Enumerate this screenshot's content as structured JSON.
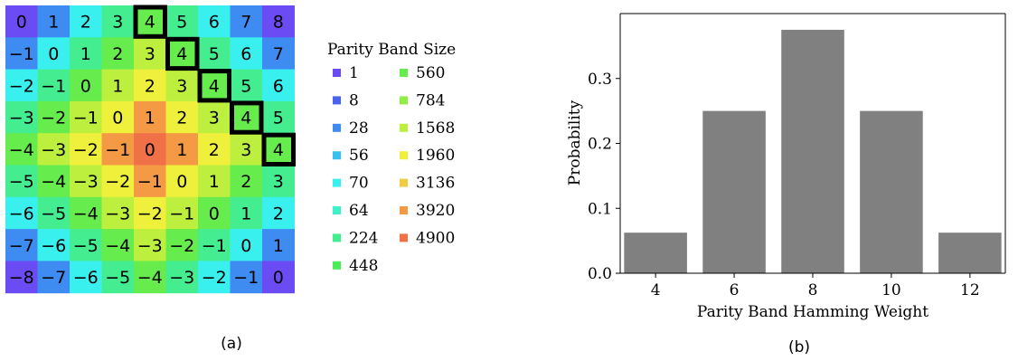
{
  "panel_a": {
    "caption": "(a)",
    "legend_title": "Parity Band Size",
    "legend": [
      {
        "label": "1",
        "color": "#6b4cf4"
      },
      {
        "label": "8",
        "color": "#4a62f0"
      },
      {
        "label": "28",
        "color": "#3e8cf2"
      },
      {
        "label": "56",
        "color": "#38c0ee"
      },
      {
        "label": "70",
        "color": "#3af0ee"
      },
      {
        "label": "64",
        "color": "#40f0c8"
      },
      {
        "label": "224",
        "color": "#44ee90"
      },
      {
        "label": "448",
        "color": "#4ceb5a"
      },
      {
        "label": "560",
        "color": "#66ec4c"
      },
      {
        "label": "784",
        "color": "#90ee44"
      },
      {
        "label": "1568",
        "color": "#bdf03e"
      },
      {
        "label": "1960",
        "color": "#eef03c"
      },
      {
        "label": "3136",
        "color": "#f2cc40"
      },
      {
        "label": "3920",
        "color": "#f49a44"
      },
      {
        "label": "4900",
        "color": "#f07048"
      }
    ]
  },
  "panel_b": {
    "caption": "(b)"
  },
  "chart_data": [
    {
      "type": "heatmap",
      "rows": 9,
      "cols": 9,
      "values": [
        [
          "0",
          "1",
          "2",
          "3",
          "4",
          "5",
          "6",
          "7",
          "8"
        ],
        [
          "−1",
          "0",
          "1",
          "2",
          "3",
          "4",
          "5",
          "6",
          "7"
        ],
        [
          "−2",
          "−1",
          "0",
          "1",
          "2",
          "3",
          "4",
          "5",
          "6"
        ],
        [
          "−3",
          "−2",
          "−1",
          "0",
          "1",
          "2",
          "3",
          "4",
          "5"
        ],
        [
          "−4",
          "−3",
          "−2",
          "−1",
          "0",
          "1",
          "2",
          "3",
          "4"
        ],
        [
          "−5",
          "−4",
          "−3",
          "−2",
          "−1",
          "0",
          "1",
          "2",
          "3"
        ],
        [
          "−6",
          "−5",
          "−4",
          "−3",
          "−2",
          "−1",
          "0",
          "1",
          "2"
        ],
        [
          "−7",
          "−6",
          "−5",
          "−4",
          "−3",
          "−2",
          "−1",
          "0",
          "1"
        ],
        [
          "−8",
          "−7",
          "−6",
          "−5",
          "−4",
          "−3",
          "−2",
          "−1",
          "0"
        ]
      ],
      "highlighted_cells": [
        [
          0,
          4
        ],
        [
          1,
          5
        ],
        [
          2,
          6
        ],
        [
          3,
          7
        ],
        [
          4,
          8
        ]
      ],
      "legend_title": "Parity Band Size"
    },
    {
      "type": "bar",
      "x": [
        4,
        6,
        8,
        10,
        12
      ],
      "values": [
        0.0625,
        0.25,
        0.375,
        0.25,
        0.0625
      ],
      "xlabel": "Parity Band Hamming Weight",
      "ylabel": "Probability",
      "xticks": [
        "4",
        "6",
        "8",
        "10",
        "12"
      ],
      "yticks": [
        "0.0",
        "0.1",
        "0.2",
        "0.3"
      ],
      "ylim": [
        0,
        0.4
      ],
      "bar_color": "#808080",
      "grid": false
    }
  ]
}
